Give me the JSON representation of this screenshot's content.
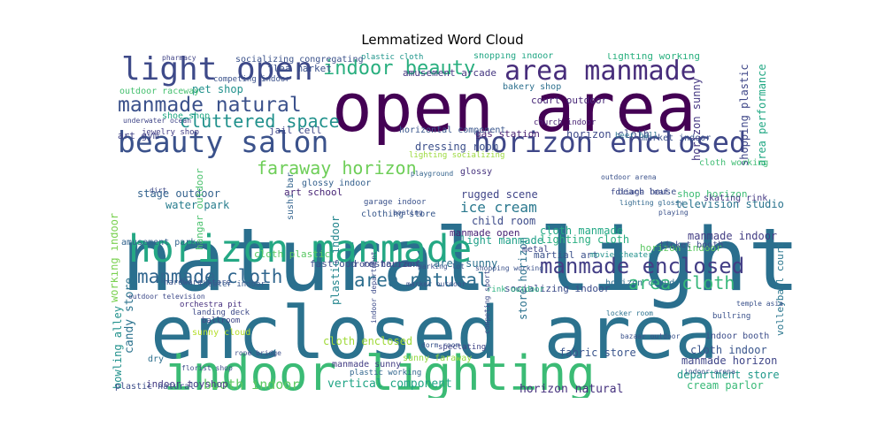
{
  "chart_data": {
    "type": "wordcloud",
    "title": "Lemmatized Word Cloud",
    "colormap": "viridis",
    "background": "#ffffff",
    "words": [
      {
        "text": "natural light",
        "color": "#2a6f8e"
      },
      {
        "text": "enclosed area",
        "color": "#2b728e"
      },
      {
        "text": "open area",
        "color": "#440154"
      },
      {
        "text": "indoor lighting",
        "color": "#3bbb75"
      },
      {
        "text": "horizon manmade",
        "color": "#24a884"
      },
      {
        "text": "light open",
        "color": "#3e4a89"
      },
      {
        "text": "area manmade",
        "color": "#472d7b"
      },
      {
        "text": "beauty salon",
        "color": "#3b528b"
      },
      {
        "text": "horizon enclosed",
        "color": "#3f4788"
      },
      {
        "text": "manmade enclosed",
        "color": "#433e85"
      },
      {
        "text": "manmade natural",
        "color": "#3b518b"
      },
      {
        "text": "manmade cloth",
        "color": "#31668e"
      },
      {
        "text": "area natural",
        "color": "#2e6e8e"
      },
      {
        "text": "indoor beauty",
        "color": "#29af7f"
      },
      {
        "text": "cluttered space",
        "color": "#21918c"
      },
      {
        "text": "faraway horizon",
        "color": "#6ece58"
      },
      {
        "text": "area cloth",
        "color": "#35b779"
      },
      {
        "text": "booth indoor",
        "color": "#5ec962"
      },
      {
        "text": "horizon natural",
        "color": "#46327e"
      },
      {
        "text": "department store",
        "color": "#1f998a"
      },
      {
        "text": "cream parlor",
        "color": "#38b977"
      },
      {
        "text": "vertical component",
        "color": "#20a486"
      },
      {
        "text": "cloth indoor",
        "color": "#39558c"
      },
      {
        "text": "manmade horizon",
        "color": "#404688"
      },
      {
        "text": "store horizon",
        "color": "#2c728e"
      },
      {
        "text": "fabric store",
        "color": "#3a548c"
      },
      {
        "text": "cloth enclosed",
        "color": "#a0da39"
      },
      {
        "text": "candy store",
        "color": "#2c738e"
      },
      {
        "text": "working indoor",
        "color": "#7ad151"
      },
      {
        "text": "bowling alley",
        "color": "#21918c"
      },
      {
        "text": "indoor toyshop",
        "color": "#443a83"
      },
      {
        "text": "plastic natural",
        "color": "#3d4e8a"
      },
      {
        "text": "pet shop",
        "color": "#21918c"
      },
      {
        "text": "art gym",
        "color": "#414487"
      },
      {
        "text": "stage outdoor",
        "color": "#33628d"
      },
      {
        "text": "water park",
        "color": "#287d8e"
      },
      {
        "text": "dressing room",
        "color": "#3c508b"
      },
      {
        "text": "ice cream",
        "color": "#2a788e"
      },
      {
        "text": "child room",
        "color": "#3e4c8a"
      },
      {
        "text": "manmade open",
        "color": "#482475"
      },
      {
        "text": "light manmade",
        "color": "#1fa088"
      },
      {
        "text": "rugged scene",
        "color": "#404588"
      },
      {
        "text": "horizon cloth",
        "color": "#3e4989"
      },
      {
        "text": "court outdoor",
        "color": "#482878"
      },
      {
        "text": "amusement arcade",
        "color": "#453781"
      },
      {
        "text": "bakery shop",
        "color": "#2d708e"
      },
      {
        "text": "gas station",
        "color": "#481f70"
      },
      {
        "text": "lighting cloth",
        "color": "#28ae80"
      },
      {
        "text": "cloth manmade",
        "color": "#22a884"
      },
      {
        "text": "manmade indoor",
        "color": "#433d84"
      },
      {
        "text": "horizon indoor",
        "color": "#5cc863"
      },
      {
        "text": "television studio",
        "color": "#2b748e"
      },
      {
        "text": "shop horizon",
        "color": "#3dbc74"
      },
      {
        "text": "horizon sunny",
        "color": "#453882"
      },
      {
        "text": "area sunny",
        "color": "#2c718e"
      },
      {
        "text": "fastfood restaurant",
        "color": "#3c4f8a"
      },
      {
        "text": "martial art",
        "color": "#3b518b"
      },
      {
        "text": "cloth plastic",
        "color": "#5ac864"
      },
      {
        "text": "amusement park",
        "color": "#33638d"
      },
      {
        "text": "plastic indoor",
        "color": "#24868e"
      },
      {
        "text": "room horizon",
        "color": "#3f4889"
      },
      {
        "text": "socializing indoor",
        "color": "#3d4d8a"
      },
      {
        "text": "horizon cloud",
        "color": "#2f6c8e"
      },
      {
        "text": "art school",
        "color": "#482576"
      },
      {
        "text": "clothing store",
        "color": "#38588c"
      },
      {
        "text": "jail cell",
        "color": "#3f4788"
      },
      {
        "text": "flea market",
        "color": "#3b528b"
      },
      {
        "text": "outdoor raceway",
        "color": "#46c06f"
      },
      {
        "text": "jewelry shop",
        "color": "#433e85"
      },
      {
        "text": "shopping indoor",
        "color": "#22a785"
      },
      {
        "text": "lighting working",
        "color": "#2ab07f"
      },
      {
        "text": "plastic cloth",
        "color": "#1f958b"
      },
      {
        "text": "shopping plastic",
        "color": "#3f4788"
      },
      {
        "text": "area performance",
        "color": "#22a884"
      },
      {
        "text": "cloth working",
        "color": "#3fbc73"
      },
      {
        "text": "skating rink",
        "color": "#443983"
      },
      {
        "text": "market indoor",
        "color": "#3b528b"
      },
      {
        "text": "beach house",
        "color": "#3d4e8a"
      },
      {
        "text": "sunny faraway",
        "color": "#95d840"
      },
      {
        "text": "manmade sunny",
        "color": "#433d84"
      },
      {
        "text": "plastic working",
        "color": "#31668e"
      },
      {
        "text": "hangar outdoor",
        "color": "#4ac16d"
      },
      {
        "text": "hardware store",
        "color": "#3b528b"
      },
      {
        "text": "theater indoor",
        "color": "#38598c"
      },
      {
        "text": "orchestra pit",
        "color": "#462f7e"
      },
      {
        "text": "landing deck",
        "color": "#3e4a89"
      },
      {
        "text": "ballroom",
        "color": "#3f4788"
      },
      {
        "text": "sunny cloud",
        "color": "#b5de2b"
      },
      {
        "text": "volleyball court",
        "color": "#2a768e"
      },
      {
        "text": "indoor booth",
        "color": "#3d4e8a"
      },
      {
        "text": "bullring",
        "color": "#3b528b"
      },
      {
        "text": "ticket booth",
        "color": "#3e4c8a"
      },
      {
        "text": "movie theater",
        "color": "#21918c"
      },
      {
        "text": "glossy indoor",
        "color": "#34608d"
      },
      {
        "text": "church indoor",
        "color": "#482173"
      },
      {
        "text": "lighting socializing",
        "color": "#9bd93c"
      },
      {
        "text": "horizontal component",
        "color": "#39568c"
      },
      {
        "text": "sushi bar",
        "color": "#33638d"
      },
      {
        "text": "metal",
        "color": "#3f4788"
      },
      {
        "text": "dry",
        "color": "#2e6f8e"
      },
      {
        "text": "socializing congregating",
        "color": "#3b528b"
      },
      {
        "text": "pharmacy",
        "color": "#414487"
      },
      {
        "text": "foliage leaf",
        "color": "#3e4a89"
      },
      {
        "text": "lighting glossy",
        "color": "#31688e"
      },
      {
        "text": "glossy",
        "color": "#46337e"
      },
      {
        "text": "temple asia",
        "color": "#3b528b"
      },
      {
        "text": "outdoor television",
        "color": "#3e4a89"
      },
      {
        "text": "playground",
        "color": "#33638d"
      },
      {
        "text": "underwater ocean",
        "color": "#404688"
      },
      {
        "text": "shopping working",
        "color": "#3b528b"
      },
      {
        "text": "locker room",
        "color": "#2c728e"
      },
      {
        "text": "bazaar outdoor",
        "color": "#3b528b"
      },
      {
        "text": "rope bridge",
        "color": "#3d4e8a"
      },
      {
        "text": "florist shop",
        "color": "#3e4c8a"
      },
      {
        "text": "dorm room",
        "color": "#3a548c"
      },
      {
        "text": "shoe shop",
        "color": "#22a884"
      },
      {
        "text": "competing indoor",
        "color": "#3b528b"
      },
      {
        "text": "beer hall",
        "color": "#2c718e"
      },
      {
        "text": "parking lot",
        "color": "#3b528b"
      },
      {
        "text": "rink outdoor",
        "color": "#2ab07f"
      },
      {
        "text": "marker outdoor",
        "color": "#3b528b"
      },
      {
        "text": "spectating",
        "color": "#414487"
      },
      {
        "text": "playing",
        "color": "#3b528b"
      },
      {
        "text": "competing sport",
        "color": "#3e4c8a"
      },
      {
        "text": "garage indoor",
        "color": "#3b528b"
      },
      {
        "text": "dirt",
        "color": "#3e4a89"
      },
      {
        "text": "boating",
        "color": "#3b528b"
      },
      {
        "text": "outdoor arena",
        "color": "#3b528b"
      },
      {
        "text": "indoor department",
        "color": "#3e4c8a"
      },
      {
        "text": "indoor arena",
        "color": "#3b528b"
      }
    ]
  }
}
